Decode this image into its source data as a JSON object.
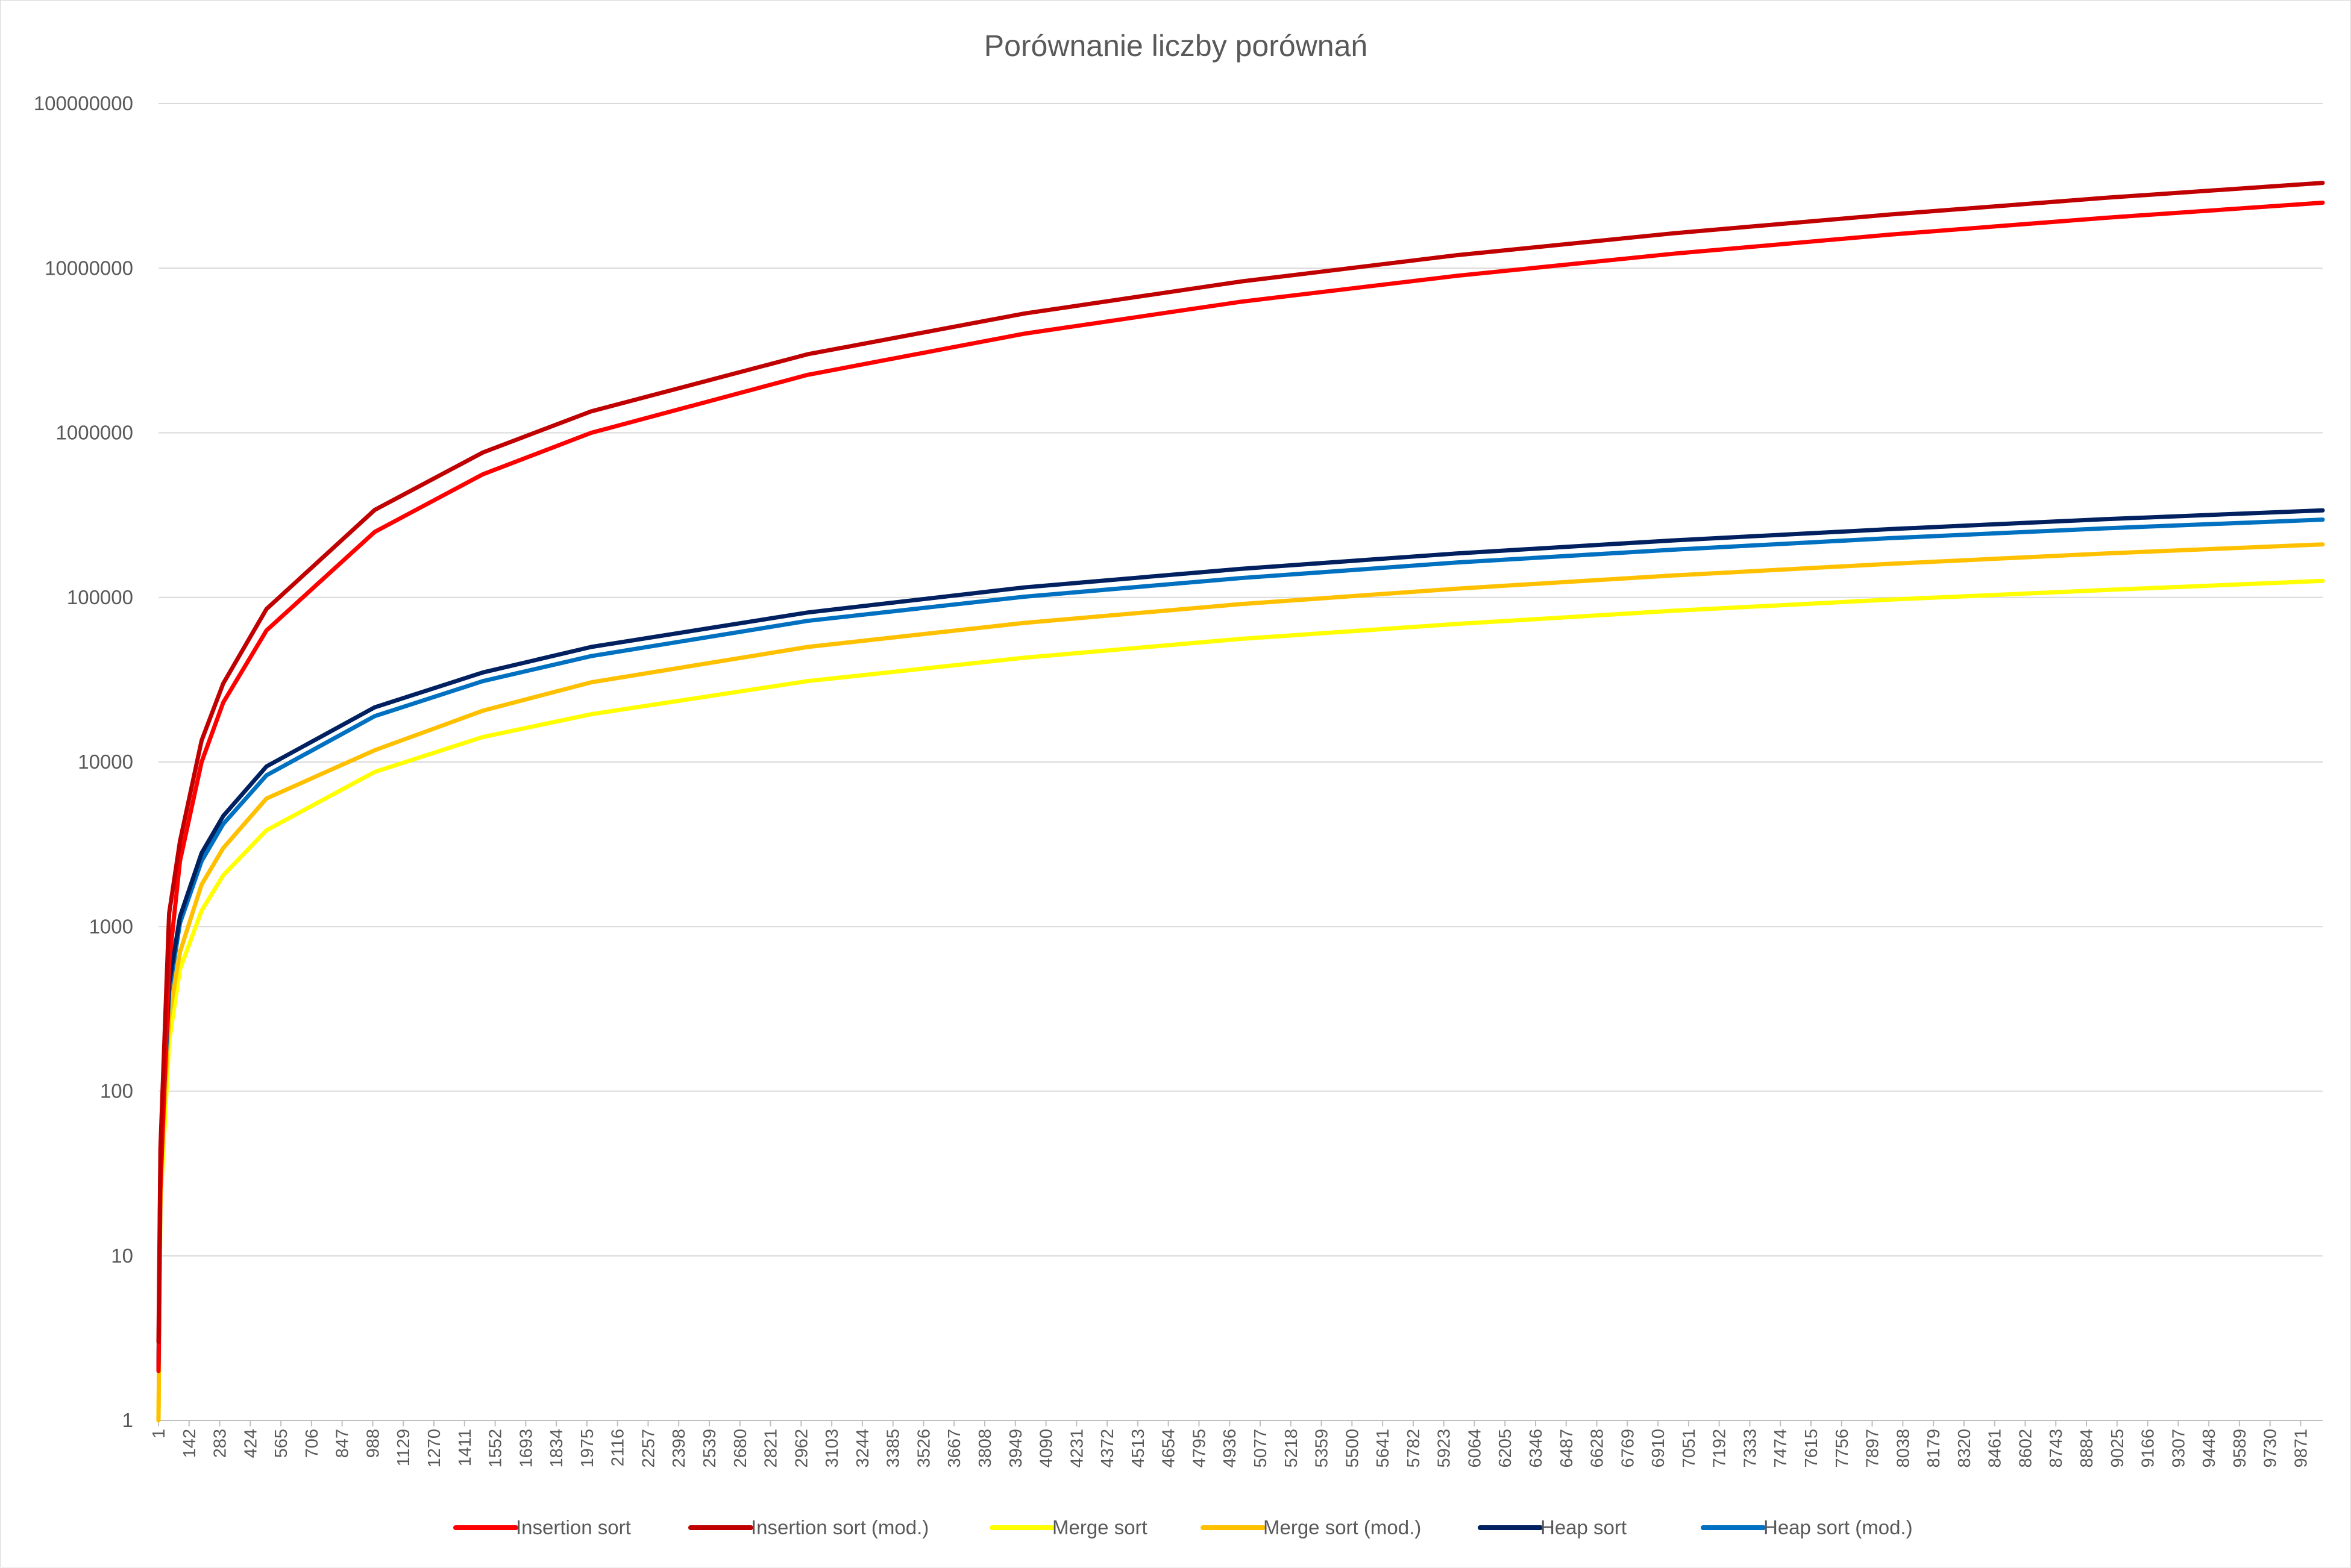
{
  "chart_data": {
    "type": "line",
    "title": "Porównanie liczby porównań",
    "xlabel": "",
    "ylabel": "",
    "y_scale": "log",
    "ylim": [
      1,
      100000000
    ],
    "xlim": [
      1,
      10000
    ],
    "y_ticks": [
      1,
      10,
      100,
      1000,
      10000,
      100000,
      1000000,
      10000000,
      100000000
    ],
    "y_tick_labels": [
      "1",
      "10",
      "100",
      "1000",
      "10000",
      "100000",
      "1000000",
      "10000000",
      "100000000"
    ],
    "x_tick_labels": [
      "1",
      "142",
      "283",
      "424",
      "565",
      "706",
      "847",
      "988",
      "1129",
      "1270",
      "1411",
      "1552",
      "1693",
      "1834",
      "1975",
      "2116",
      "2257",
      "2398",
      "2539",
      "2680",
      "2821",
      "2962",
      "3103",
      "3244",
      "3385",
      "3526",
      "3667",
      "3808",
      "3949",
      "4090",
      "4231",
      "4372",
      "4513",
      "4654",
      "4795",
      "4936",
      "5077",
      "5218",
      "5359",
      "5500",
      "5641",
      "5782",
      "5923",
      "6064",
      "6205",
      "6346",
      "6487",
      "6628",
      "6769",
      "6910",
      "7051",
      "7192",
      "7333",
      "7474",
      "7615",
      "7756",
      "7897",
      "8038",
      "8179",
      "8320",
      "8461",
      "8602",
      "8743",
      "8884",
      "9025",
      "9166",
      "9307",
      "9448",
      "9589",
      "9730",
      "9871"
    ],
    "grid": true,
    "legend_position": "bottom",
    "x": [
      1,
      10,
      50,
      100,
      200,
      300,
      500,
      1000,
      1500,
      2000,
      3000,
      4000,
      5000,
      6000,
      7000,
      8000,
      9000,
      10000
    ],
    "series": [
      {
        "name": "Insertion sort",
        "color": "#ff0000",
        "values": [
          2,
          25,
          600,
          2500,
          10000,
          23000,
          63000,
          250000,
          560000,
          1000000,
          2250000,
          4000000,
          6250000,
          9000000,
          12250000,
          16000000,
          20250000,
          25000000
        ]
      },
      {
        "name": "Insertion sort (mod.)",
        "color": "#c00000",
        "values": [
          3,
          45,
          1200,
          3300,
          13500,
          30000,
          85000,
          340000,
          760000,
          1350000,
          3000000,
          5300000,
          8300000,
          12000000,
          16300000,
          21200000,
          26800000,
          33000000
        ]
      },
      {
        "name": "Merge sort",
        "color": "#ffff00",
        "values": [
          1,
          20,
          200,
          550,
          1250,
          2050,
          3850,
          8700,
          14200,
          19500,
          31000,
          43000,
          56000,
          69000,
          83000,
          97000,
          111000,
          126000
        ]
      },
      {
        "name": "Merge sort (mod.)",
        "color": "#ffc000",
        "values": [
          1,
          30,
          280,
          700,
          1800,
          3000,
          6000,
          11800,
          20500,
          30500,
          50000,
          70000,
          91000,
          113000,
          136000,
          160000,
          185000,
          210000
        ]
      },
      {
        "name": "Heap sort",
        "color": "#002060",
        "values": [
          2,
          40,
          450,
          1150,
          2800,
          4700,
          9400,
          21500,
          35000,
          50000,
          81000,
          115000,
          149000,
          185000,
          222000,
          260000,
          299000,
          338000
        ]
      },
      {
        "name": "Heap sort (mod.)",
        "color": "#0070c0",
        "values": [
          2,
          35,
          400,
          1050,
          2500,
          4200,
          8300,
          19000,
          31000,
          44000,
          72000,
          101000,
          131000,
          163000,
          195000,
          229000,
          263000,
          297000
        ]
      }
    ]
  }
}
